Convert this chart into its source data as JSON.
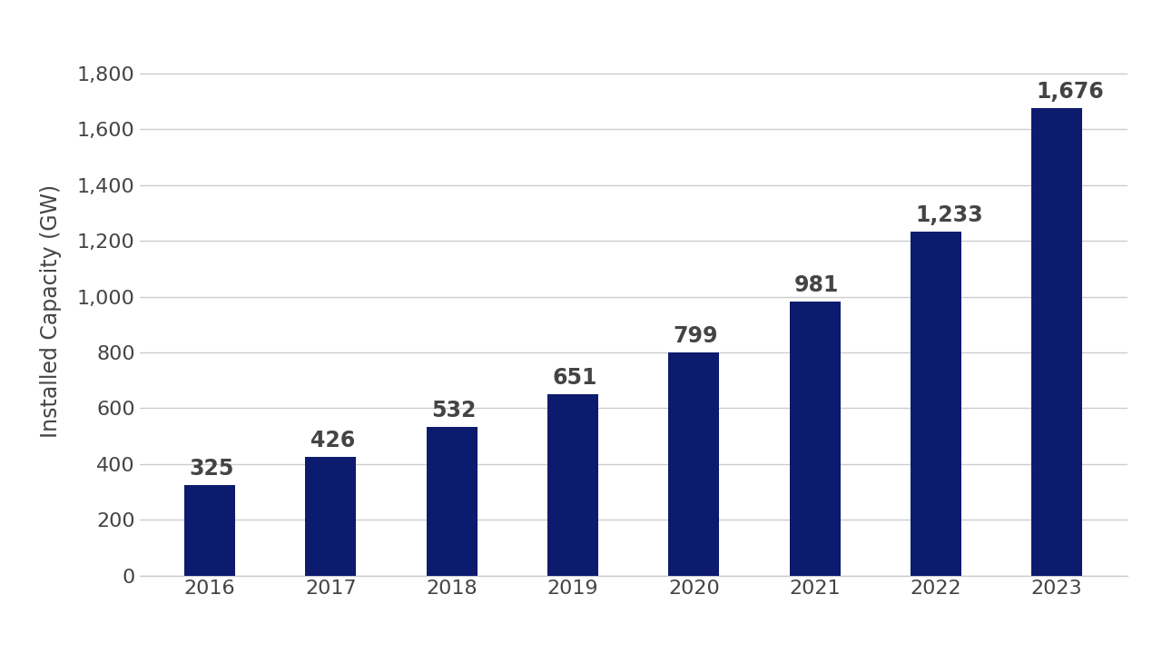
{
  "years": [
    "2016",
    "2017",
    "2018",
    "2019",
    "2020",
    "2021",
    "2022",
    "2023"
  ],
  "values": [
    325,
    426,
    532,
    651,
    799,
    981,
    1233,
    1676
  ],
  "bar_color": "#0D1B6E",
  "ylabel": "Installed Capacity (GW)",
  "ylim": [
    0,
    1900
  ],
  "yticks": [
    0,
    200,
    400,
    600,
    800,
    1000,
    1200,
    1400,
    1600,
    1800
  ],
  "background_color": "#FFFFFF",
  "grid_color": "#CCCCCC",
  "label_fontsize": 17,
  "tick_fontsize": 16,
  "bar_label_fontsize": 17,
  "bar_width": 0.42,
  "label_color": "#444444"
}
